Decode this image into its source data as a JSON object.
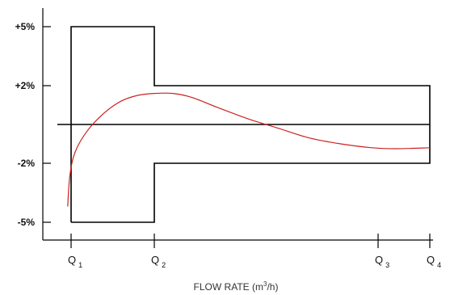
{
  "chart_data": {
    "type": "line",
    "title": "",
    "xlabel": {
      "text_before": "FLOW RATE (m",
      "superscript": "3",
      "text_after": "/h)"
    },
    "ylabel": "",
    "grid": false,
    "y_ticks": [
      {
        "label": "+5%",
        "value": 5
      },
      {
        "label": "+2%",
        "value": 2
      },
      {
        "label": "-2%",
        "value": -2
      },
      {
        "label": "-5%",
        "value": -5
      }
    ],
    "x_ticks": [
      {
        "base": "Q",
        "sub": "1",
        "value": 1
      },
      {
        "base": "Q",
        "sub": "2",
        "value": 2
      },
      {
        "base": "Q",
        "sub": "3",
        "value": 5.6
      },
      {
        "base": "Q",
        "sub": "4",
        "value": 6.2
      }
    ],
    "colors": {
      "limit": "#000000",
      "curve": "#cc2222",
      "axis": "#000000"
    },
    "series": [
      {
        "kind": "tolerance-limit",
        "points": [
          [
            1,
            -5
          ],
          [
            1,
            5
          ],
          [
            2,
            5
          ],
          [
            2,
            2
          ],
          [
            6.2,
            2
          ],
          [
            6.2,
            -2
          ],
          [
            2,
            -2
          ],
          [
            2,
            -5
          ],
          [
            1,
            -5
          ]
        ]
      },
      {
        "kind": "reference-line",
        "points": [
          [
            0.4,
            0
          ],
          [
            6.2,
            0
          ]
        ]
      },
      {
        "kind": "error-curve",
        "points": [
          [
            0.85,
            -4.2
          ],
          [
            0.95,
            -2.6
          ],
          [
            1.05,
            -1.4
          ],
          [
            1.2,
            -0.3
          ],
          [
            1.4,
            0.6
          ],
          [
            1.6,
            1.2
          ],
          [
            1.8,
            1.5
          ],
          [
            2.0,
            1.6
          ],
          [
            2.3,
            1.6
          ],
          [
            2.6,
            1.4
          ],
          [
            3.0,
            0.9
          ],
          [
            3.5,
            0.3
          ],
          [
            4.0,
            -0.2
          ],
          [
            4.5,
            -0.7
          ],
          [
            5.0,
            -1.0
          ],
          [
            5.5,
            -1.2
          ],
          [
            5.8,
            -1.25
          ],
          [
            6.2,
            -1.2
          ]
        ]
      }
    ]
  }
}
